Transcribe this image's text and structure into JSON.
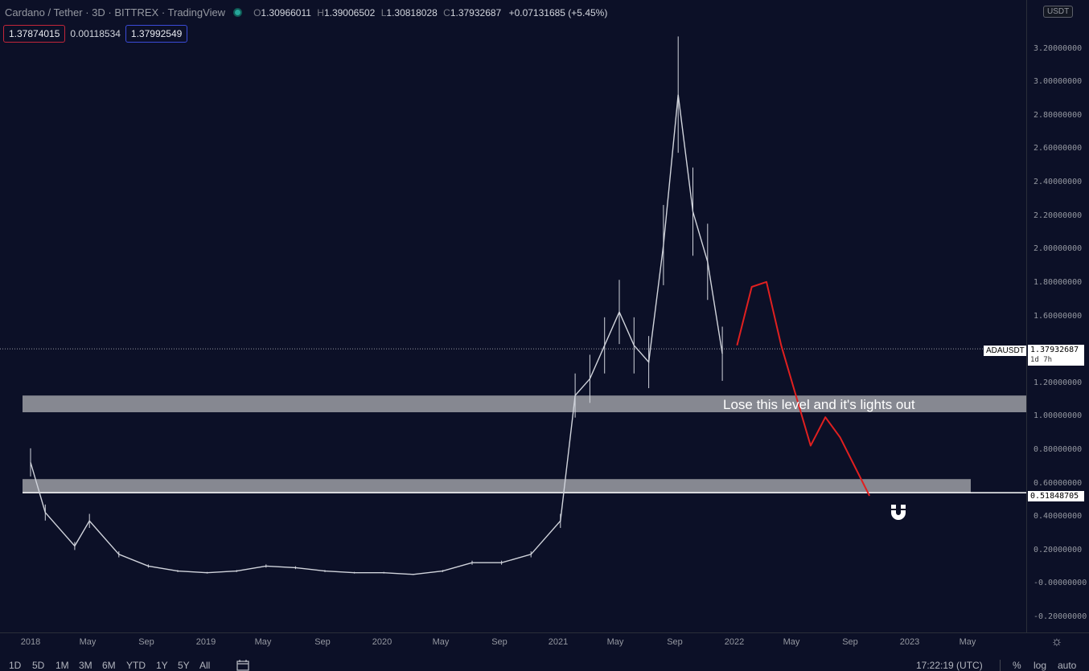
{
  "legend": {
    "title": "Cardano / Tether · 3D · BITTREX · TradingView",
    "open_key": "O",
    "open": "1.30966011",
    "high_key": "H",
    "high": "1.39006502",
    "low_key": "L",
    "low": "1.30818028",
    "close_key": "C",
    "close": "1.37932687",
    "change": "+0.07131685 (+5.45%)"
  },
  "quote": {
    "bid": "1.37874015",
    "spread": "0.00118534",
    "ask": "1.37992549"
  },
  "price_axis": {
    "currency": "USDT",
    "ticks": [
      "3.20000000",
      "3.00000000",
      "2.80000000",
      "2.60000000",
      "2.40000000",
      "2.20000000",
      "2.00000000",
      "1.80000000",
      "1.60000000",
      "1.40000000",
      "1.20000000",
      "1.00000000",
      "0.80000000",
      "0.60000000",
      "0.40000000",
      "0.20000000",
      "-0.00000000",
      "-0.20000000"
    ],
    "last_price": "1.37932687",
    "countdown": "1d 7h",
    "symbol": "ADAUSDT",
    "level_price": "0.51848705"
  },
  "time_axis": {
    "labels": [
      "2018",
      "May",
      "Sep",
      "2019",
      "May",
      "Sep",
      "2020",
      "May",
      "Sep",
      "2021",
      "May",
      "Sep",
      "2022",
      "May",
      "Sep",
      "2023",
      "May"
    ]
  },
  "annotation": "Lose this level and it's lights out",
  "bottom_bar": {
    "ranges": [
      "1D",
      "5D",
      "1M",
      "3M",
      "6M",
      "YTD",
      "1Y",
      "5Y",
      "All"
    ],
    "clock": "17:22:19 (UTC)",
    "percent": "%",
    "log": "log",
    "auto": "auto"
  },
  "colors": {
    "background": "#0c1027",
    "candle": "#d1d4dc",
    "zone": "#d8d8d8",
    "projection": "#e02020",
    "bid": "#c2263a",
    "ask": "#3b4bd8",
    "status": "#26a69a"
  },
  "icons": [
    "status-dot-icon",
    "gear-icon",
    "calendar-icon",
    "magnet-icon"
  ],
  "chart_data": {
    "type": "line",
    "title": "Cardano / Tether · 3D · BITTREX · TradingView",
    "xlabel": "",
    "ylabel": "",
    "ylim": [
      -0.25,
      3.4
    ],
    "x": [
      "2018-01",
      "2018-02",
      "2018-04",
      "2018-05",
      "2018-07",
      "2018-09",
      "2018-11",
      "2019-01",
      "2019-03",
      "2019-05",
      "2019-07",
      "2019-09",
      "2019-11",
      "2020-01",
      "2020-03",
      "2020-05",
      "2020-07",
      "2020-09",
      "2020-11",
      "2021-01",
      "2021-02",
      "2021-03",
      "2021-04",
      "2021-05",
      "2021-06",
      "2021-07",
      "2021-08",
      "2021-09",
      "2021-10",
      "2021-11",
      "2021-12"
    ],
    "series": [
      {
        "values": [
          0.7,
          0.4,
          0.2,
          0.35,
          0.15,
          0.08,
          0.05,
          0.04,
          0.05,
          0.08,
          0.07,
          0.05,
          0.04,
          0.04,
          0.03,
          0.05,
          0.1,
          0.1,
          0.15,
          0.35,
          1.1,
          1.2,
          1.4,
          1.6,
          1.4,
          1.3,
          2.0,
          2.9,
          2.2,
          1.9,
          1.35
        ]
      }
    ],
    "zones": [
      [
        1.0,
        1.1
      ],
      [
        0.52,
        0.6
      ]
    ],
    "horizontal_lines": [
      1.37932687,
      0.51848705
    ],
    "projection": [
      {
        "x": "2022-01",
        "y": 1.4
      },
      {
        "x": "2022-02",
        "y": 1.75
      },
      {
        "x": "2022-03",
        "y": 1.78
      },
      {
        "x": "2022-04",
        "y": 1.4
      },
      {
        "x": "2022-06",
        "y": 0.8
      },
      {
        "x": "2022-07",
        "y": 0.97
      },
      {
        "x": "2022-08",
        "y": 0.85
      },
      {
        "x": "2022-10",
        "y": 0.5
      }
    ],
    "grid": false,
    "legend": "none"
  }
}
